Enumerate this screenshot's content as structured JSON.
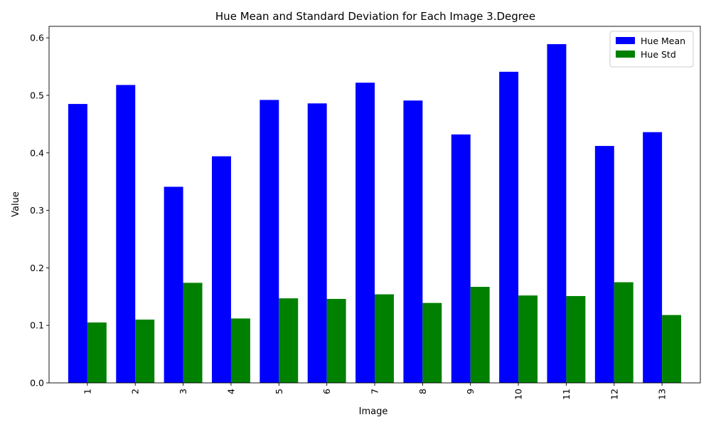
{
  "chart_data": {
    "type": "bar",
    "title": "Hue Mean and Standard Deviation for Each Image 3.Degree",
    "xlabel": "Image",
    "ylabel": "Value",
    "categories": [
      "1",
      "2",
      "3",
      "4",
      "5",
      "6",
      "7",
      "8",
      "9",
      "10",
      "11",
      "12",
      "13"
    ],
    "series": [
      {
        "name": "Hue Mean",
        "color": "#0000ff",
        "values": [
          0.485,
          0.518,
          0.341,
          0.394,
          0.492,
          0.486,
          0.522,
          0.491,
          0.432,
          0.541,
          0.589,
          0.412,
          0.436
        ]
      },
      {
        "name": "Hue Std",
        "color": "#008000",
        "values": [
          0.105,
          0.11,
          0.174,
          0.112,
          0.147,
          0.146,
          0.154,
          0.139,
          0.167,
          0.152,
          0.151,
          0.175,
          0.118
        ]
      }
    ],
    "ylim": [
      0,
      0.62
    ],
    "yticks": [
      "0.0",
      "0.1",
      "0.2",
      "0.3",
      "0.4",
      "0.5",
      "0.6"
    ],
    "x_tick_rotation": "vertical",
    "legend_position": "top-right",
    "grid": false
  }
}
